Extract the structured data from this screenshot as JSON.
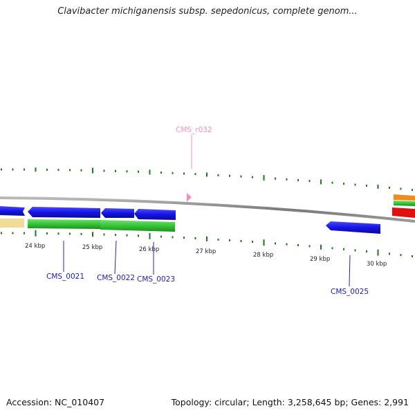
{
  "title": "Clavibacter michiganensis subsp. sepedonicus, complete genom...",
  "accession": "Accession: NC_010407",
  "topology": "Topology: circular; Length: 3,258,645 bp; Genes: 2,991",
  "scale_labels": [
    "24 kbp",
    "25 kbp",
    "26 kbp",
    "27 kbp",
    "28 kbp",
    "29 kbp",
    "30 kbp"
  ],
  "gene_labels": {
    "cms_r032": "CMS_r032",
    "cms_0021": "CMS_0021",
    "cms_0022": "CMS_0022",
    "cms_0023": "CMS_0023",
    "cms_0025": "CMS_0025"
  },
  "colors": {
    "cds": "#1a1aee",
    "rna": "#f090c0",
    "cog": "#3ec83e",
    "backbone": "#8a8a8a",
    "gc_ticks": "#1a7a1a",
    "beige": "#f0dc96",
    "orange": "#f28a1e",
    "red": "#e01010"
  }
}
